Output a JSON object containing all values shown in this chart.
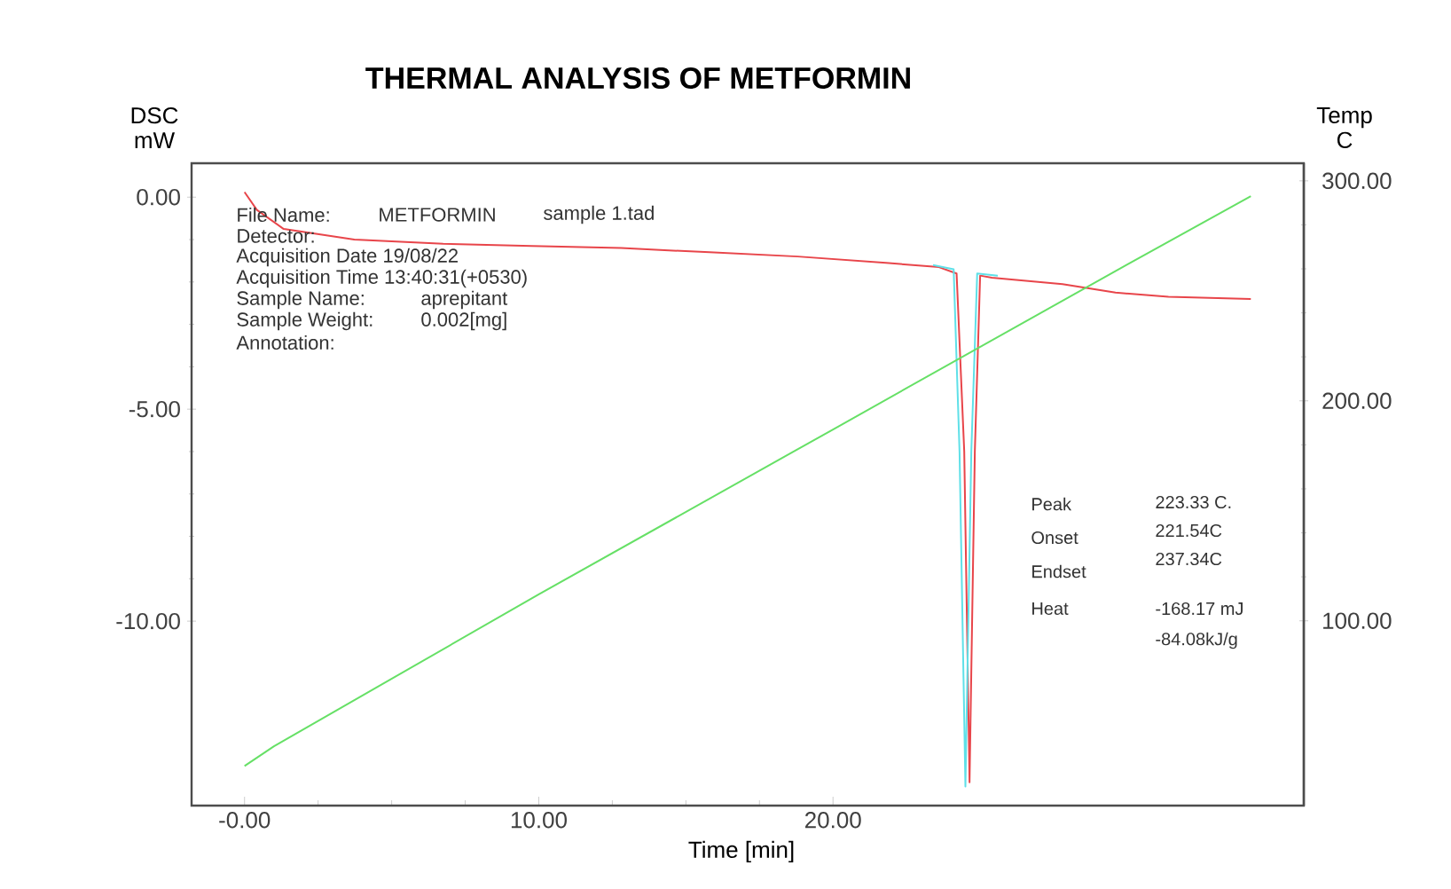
{
  "chart_data": {
    "type": "line",
    "title": "THERMAL ANALYSIS OF METFORMIN",
    "xlabel": "Time   [min]",
    "ylabel": "DSC mW",
    "y2label": "Temp C",
    "xlim": [
      -1.8,
      36
    ],
    "ylim": [
      -14.35,
      0.8
    ],
    "y2lim": [
      16,
      308
    ],
    "xticks": [
      {
        "value": 0,
        "label": "-0.00"
      },
      {
        "value": 10,
        "label": "10.00"
      },
      {
        "value": 20,
        "label": "20.00"
      }
    ],
    "yticks": [
      {
        "value": 0,
        "label": "0.00"
      },
      {
        "value": -5,
        "label": "-5.00"
      },
      {
        "value": -10,
        "label": "-10.00"
      }
    ],
    "y2ticks": [
      {
        "value": 100,
        "label": "100.00"
      },
      {
        "value": 200,
        "label": "200.00"
      },
      {
        "value": 300,
        "label": "300.00"
      }
    ],
    "series": [
      {
        "color": "#66e066",
        "axis": "y2",
        "x": [
          0,
          1,
          10,
          20,
          30,
          34.2
        ],
        "values": [
          34,
          43,
          112,
          187,
          262,
          293
        ]
      },
      {
        "color": "#e8454a",
        "axis": "y",
        "x": [
          0,
          0.42,
          1.33,
          3.73,
          6.75,
          9.76,
          12.8,
          15.8,
          18.8,
          21.8,
          23.6,
          24.2,
          24.46,
          24.64,
          24.82,
          25.0,
          25.4,
          27.8,
          29.6,
          31.4,
          34.2
        ],
        "values": [
          0.12,
          -0.3,
          -0.75,
          -1.0,
          -1.1,
          -1.15,
          -1.2,
          -1.3,
          -1.4,
          -1.55,
          -1.65,
          -1.8,
          -6,
          -13.8,
          -6,
          -1.85,
          -1.9,
          -2.05,
          -2.25,
          -2.35,
          -2.4
        ]
      },
      {
        "color": "#5fe0e8",
        "axis": "y",
        "x": [
          23.4,
          24.1,
          24.3,
          24.5,
          24.7,
          24.9,
          25.6
        ],
        "values": [
          -1.6,
          -1.7,
          -6,
          -13.9,
          -6,
          -1.8,
          -1.85
        ]
      }
    ],
    "annotations": [
      "File Name:",
      "METFORMIN",
      "sample 1.tad",
      "Detector:",
      "Acquisition Date 19/08/22",
      "Acquisition Time 13:40:31(+0530)",
      "Sample Name:",
      "aprepitant",
      "Sample Weight:",
      "0.002[mg]",
      "Annotation:",
      "Peak",
      "223.33 C.",
      "Onset",
      "221.54C",
      "Endset",
      "237.34C",
      "Heat",
      "-168.17 mJ",
      "-84.08kJ/g"
    ]
  }
}
